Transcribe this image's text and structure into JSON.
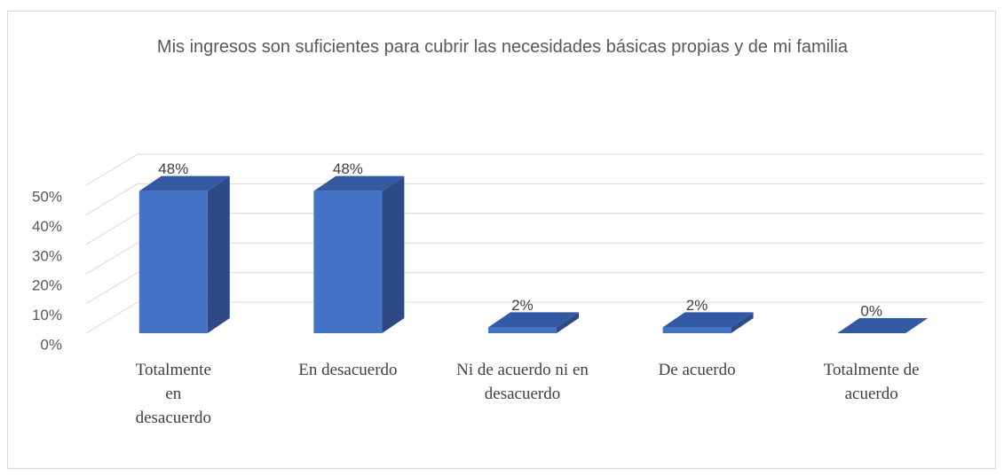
{
  "chart_data": {
    "type": "bar3d",
    "title": "Mis ingresos son suficientes para cubrir las necesidades básicas propias y de mi familia",
    "categories": [
      "Totalmente en desacuerdo",
      "En desacuerdo",
      "Ni de acuerdo ni en desacuerdo",
      "De acuerdo",
      "Totalmente de acuerdo"
    ],
    "values": [
      48,
      48,
      2,
      2,
      0
    ],
    "value_labels": [
      "48%",
      "48%",
      "2%",
      "2%",
      "0%"
    ],
    "color": "#4472c4",
    "ylim": [
      0,
      50
    ],
    "yticks": [
      {
        "value": 0,
        "label": "0%"
      },
      {
        "value": 10,
        "label": "10%"
      },
      {
        "value": 20,
        "label": "20%"
      },
      {
        "value": 30,
        "label": "30%"
      },
      {
        "value": 40,
        "label": "40%"
      },
      {
        "value": 50,
        "label": "50%"
      }
    ],
    "grid": true
  }
}
